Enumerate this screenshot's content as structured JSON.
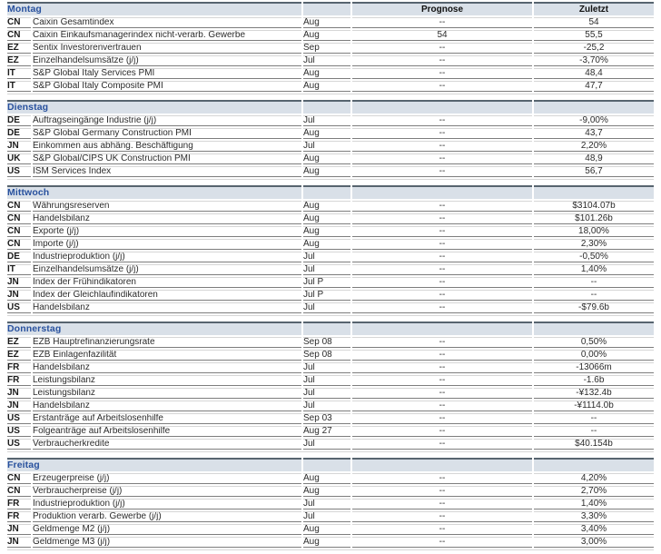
{
  "colors": {
    "section_header_bg": "#d9e0e8",
    "section_header_border": "#57646f",
    "day_label_text": "#28519e",
    "row_rule_dark": "#7d7d7d",
    "row_rule_light": "#d6d6d6"
  },
  "table": {
    "column_headers": {
      "prognose": "Prognose",
      "zuletzt": "Zuletzt"
    },
    "sections": [
      {
        "day": "Montag",
        "rows": [
          {
            "country": "CN",
            "indicator": "Caixin Gesamtindex",
            "period": "Aug",
            "prognose": "--",
            "zuletzt": "54"
          },
          {
            "country": "CN",
            "indicator": "Caixin Einkaufsmanagerindex nicht-verarb. Gewerbe",
            "period": "Aug",
            "prognose": "54",
            "zuletzt": "55,5"
          },
          {
            "country": "EZ",
            "indicator": "Sentix Investorenvertrauen",
            "period": "Sep",
            "prognose": "--",
            "zuletzt": "-25,2"
          },
          {
            "country": "EZ",
            "indicator": "Einzelhandelsumsätze (j/j)",
            "period": "Jul",
            "prognose": "--",
            "zuletzt": "-3,70%"
          },
          {
            "country": "IT",
            "indicator": "S&P Global Italy Services PMI",
            "period": "Aug",
            "prognose": "--",
            "zuletzt": "48,4"
          },
          {
            "country": "IT",
            "indicator": "S&P Global Italy Composite PMI",
            "period": "Aug",
            "prognose": "--",
            "zuletzt": "47,7"
          }
        ]
      },
      {
        "day": "Dienstag",
        "rows": [
          {
            "country": "DE",
            "indicator": "Auftragseingänge Industrie (j/j)",
            "period": "Jul",
            "prognose": "--",
            "zuletzt": "-9,00%"
          },
          {
            "country": "DE",
            "indicator": "S&P Global Germany Construction PMI",
            "period": "Aug",
            "prognose": "--",
            "zuletzt": "43,7"
          },
          {
            "country": "JN",
            "indicator": "Einkommen aus abhäng. Beschäftigung",
            "period": "Jul",
            "prognose": "--",
            "zuletzt": "2,20%"
          },
          {
            "country": "UK",
            "indicator": "S&P Global/CIPS UK Construction PMI",
            "period": "Aug",
            "prognose": "--",
            "zuletzt": "48,9"
          },
          {
            "country": "US",
            "indicator": "ISM Services Index",
            "period": "Aug",
            "prognose": "--",
            "zuletzt": "56,7"
          }
        ]
      },
      {
        "day": "Mittwoch",
        "rows": [
          {
            "country": "CN",
            "indicator": "Währungsreserven",
            "period": "Aug",
            "prognose": "--",
            "zuletzt": "$3104.07b"
          },
          {
            "country": "CN",
            "indicator": "Handelsbilanz",
            "period": "Aug",
            "prognose": "--",
            "zuletzt": "$101.26b"
          },
          {
            "country": "CN",
            "indicator": "Exporte (j/j)",
            "period": "Aug",
            "prognose": "--",
            "zuletzt": "18,00%"
          },
          {
            "country": "CN",
            "indicator": "Importe (j/j)",
            "period": "Aug",
            "prognose": "--",
            "zuletzt": "2,30%"
          },
          {
            "country": "DE",
            "indicator": "Industrieproduktion (j/j)",
            "period": "Jul",
            "prognose": "--",
            "zuletzt": "-0,50%"
          },
          {
            "country": "IT",
            "indicator": "Einzelhandelsumsätze (j/j)",
            "period": "Jul",
            "prognose": "--",
            "zuletzt": "1,40%"
          },
          {
            "country": "JN",
            "indicator": "Index der Frühindikatoren",
            "period": "Jul P",
            "prognose": "--",
            "zuletzt": "--"
          },
          {
            "country": "JN",
            "indicator": "Index der Gleichlaufindikatoren",
            "period": "Jul P",
            "prognose": "--",
            "zuletzt": "--"
          },
          {
            "country": "US",
            "indicator": "Handelsbilanz",
            "period": "Jul",
            "prognose": "--",
            "zuletzt": "-$79.6b"
          }
        ]
      },
      {
        "day": "Donnerstag",
        "rows": [
          {
            "country": "EZ",
            "indicator": "EZB Hauptrefinanzierungsrate",
            "period": "Sep 08",
            "prognose": "--",
            "zuletzt": "0,50%"
          },
          {
            "country": "EZ",
            "indicator": "EZB Einlagenfazilität",
            "period": "Sep 08",
            "prognose": "--",
            "zuletzt": "0,00%"
          },
          {
            "country": "FR",
            "indicator": "Handelsbilanz",
            "period": "Jul",
            "prognose": "--",
            "zuletzt": "-13066m"
          },
          {
            "country": "FR",
            "indicator": "Leistungsbilanz",
            "period": "Jul",
            "prognose": "--",
            "zuletzt": "-1.6b"
          },
          {
            "country": "JN",
            "indicator": "Leistungsbilanz",
            "period": "Jul",
            "prognose": "--",
            "zuletzt": "-¥132.4b"
          },
          {
            "country": "JN",
            "indicator": "Handelsbilanz",
            "period": "Jul",
            "prognose": "--",
            "zuletzt": "-¥1114.0b"
          },
          {
            "country": "US",
            "indicator": "Erstanträge auf Arbeitslosenhilfe",
            "period": "Sep 03",
            "prognose": "--",
            "zuletzt": "--"
          },
          {
            "country": "US",
            "indicator": "Folgeanträge auf Arbeitslosenhilfe",
            "period": "Aug 27",
            "prognose": "--",
            "zuletzt": "--"
          },
          {
            "country": "US",
            "indicator": "Verbraucherkredite",
            "period": "Jul",
            "prognose": "--",
            "zuletzt": "$40.154b"
          }
        ]
      },
      {
        "day": "Freitag",
        "rows": [
          {
            "country": "CN",
            "indicator": "Erzeugerpreise (j/j)",
            "period": "Aug",
            "prognose": "--",
            "zuletzt": "4,20%"
          },
          {
            "country": "CN",
            "indicator": "Verbraucherpreise (j/j)",
            "period": "Aug",
            "prognose": "--",
            "zuletzt": "2,70%"
          },
          {
            "country": "FR",
            "indicator": "Industrieproduktion (j/j)",
            "period": "Jul",
            "prognose": "--",
            "zuletzt": "1,40%"
          },
          {
            "country": "FR",
            "indicator": "Produktion verarb. Gewerbe (j/j)",
            "period": "Jul",
            "prognose": "--",
            "zuletzt": "3,30%"
          },
          {
            "country": "JN",
            "indicator": "Geldmenge M2 (j/j)",
            "period": "Aug",
            "prognose": "--",
            "zuletzt": "3,40%"
          },
          {
            "country": "JN",
            "indicator": "Geldmenge M3 (j/j)",
            "period": "Aug",
            "prognose": "--",
            "zuletzt": "3,00%"
          }
        ]
      }
    ]
  }
}
